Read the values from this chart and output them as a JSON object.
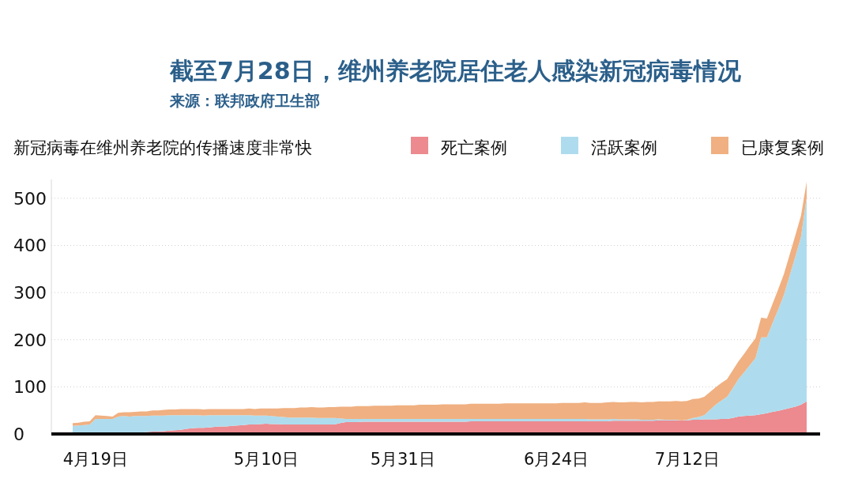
{
  "chart_data": {
    "type": "area",
    "stacked": true,
    "title": "截至7月28日，维州养老院居住老人感染新冠病毒情况",
    "subtitle": "新冠病毒在维州养老院的传播速度非常快",
    "annotations": [
      "来源：联邦政府卫生部"
    ],
    "categories": [
      null,
      null,
      null,
      null,
      "4月19日",
      null,
      null,
      null,
      null,
      null,
      null,
      null,
      null,
      null,
      null,
      null,
      null,
      null,
      null,
      null,
      null,
      null,
      null,
      null,
      null,
      null,
      null,
      null,
      null,
      null,
      null,
      null,
      null,
      null,
      "5月10日",
      null,
      null,
      null,
      null,
      null,
      null,
      null,
      null,
      null,
      null,
      null,
      null,
      null,
      null,
      null,
      null,
      null,
      null,
      null,
      null,
      null,
      null,
      null,
      "5月31日",
      null,
      null,
      null,
      null,
      null,
      null,
      null,
      null,
      null,
      null,
      null,
      null,
      null,
      null,
      null,
      null,
      null,
      null,
      null,
      null,
      null,
      null,
      null,
      null,
      null,
      null,
      "6月24日",
      null,
      null,
      null,
      null,
      null,
      null,
      null,
      null,
      null,
      null,
      null,
      null,
      null,
      null,
      null,
      null,
      null,
      null,
      null,
      null,
      null,
      null,
      "7月12日",
      null,
      null,
      null,
      null,
      null,
      null,
      null,
      null,
      null,
      null,
      null,
      null,
      null,
      null,
      null,
      null,
      null,
      null,
      null,
      null,
      null
    ],
    "series": [
      {
        "name": "死亡案例",
        "color": "#ec8a8f",
        "values": [
          1,
          1,
          1,
          1,
          1,
          1,
          1,
          1,
          1,
          2,
          2,
          3,
          3,
          4,
          5,
          5,
          6,
          7,
          8,
          9,
          11,
          12,
          13,
          13,
          14,
          15,
          16,
          16,
          17,
          18,
          19,
          20,
          20,
          21,
          22,
          21,
          21,
          20,
          20,
          20,
          20,
          20,
          20,
          20,
          20,
          20,
          20,
          23,
          25,
          25,
          25,
          26,
          26,
          26,
          26,
          26,
          26,
          26,
          26,
          26,
          26,
          26,
          26,
          26,
          26,
          26,
          26,
          26,
          26,
          26,
          27,
          27,
          27,
          27,
          27,
          27,
          27,
          27,
          27,
          27,
          27,
          27,
          27,
          27,
          27,
          27,
          27,
          27,
          27,
          27,
          27,
          27,
          27,
          27,
          27,
          28,
          28,
          28,
          28,
          28,
          28,
          28,
          28,
          29,
          29,
          29,
          29,
          29,
          29,
          30,
          30,
          31,
          31,
          31,
          32,
          32,
          34,
          37,
          38,
          39,
          40,
          42,
          44,
          47,
          49,
          52,
          55,
          58,
          62,
          69
        ]
      },
      {
        "name": "活跃案例",
        "color": "#aedcee",
        "values": [
          16,
          17,
          18,
          19,
          31,
          31,
          31,
          31,
          36,
          36,
          35,
          35,
          35,
          34,
          34,
          34,
          33,
          33,
          32,
          31,
          29,
          28,
          27,
          26,
          26,
          25,
          24,
          24,
          23,
          22,
          21,
          20,
          19,
          18,
          17,
          17,
          16,
          16,
          15,
          15,
          15,
          15,
          15,
          14,
          14,
          14,
          14,
          10,
          7,
          7,
          7,
          6,
          6,
          6,
          6,
          6,
          6,
          6,
          6,
          6,
          6,
          6,
          6,
          6,
          6,
          6,
          6,
          6,
          6,
          6,
          5,
          5,
          5,
          5,
          5,
          5,
          5,
          5,
          5,
          5,
          5,
          5,
          5,
          5,
          5,
          5,
          5,
          5,
          5,
          5,
          5,
          4,
          4,
          4,
          4,
          4,
          3,
          3,
          3,
          3,
          2,
          2,
          2,
          2,
          1,
          1,
          1,
          0,
          1,
          4,
          6,
          9,
          20,
          31,
          39,
          47,
          63,
          79,
          93,
          107,
          121,
          163,
          161,
          188,
          215,
          243,
          281,
          318,
          356,
          433
        ]
      },
      {
        "name": "已康复案例",
        "color": "#f0b081",
        "values": [
          6,
          6,
          7,
          7,
          8,
          7,
          6,
          5,
          8,
          8,
          9,
          9,
          10,
          10,
          11,
          11,
          12,
          12,
          12,
          13,
          13,
          13,
          13,
          13,
          13,
          13,
          13,
          13,
          13,
          13,
          13,
          14,
          14,
          15,
          15,
          16,
          17,
          19,
          20,
          20,
          21,
          21,
          22,
          22,
          22,
          23,
          23,
          25,
          26,
          26,
          27,
          27,
          27,
          28,
          28,
          28,
          28,
          29,
          29,
          29,
          29,
          30,
          30,
          30,
          30,
          31,
          31,
          31,
          31,
          31,
          32,
          32,
          32,
          32,
          32,
          32,
          33,
          33,
          33,
          33,
          33,
          33,
          33,
          33,
          33,
          33,
          34,
          34,
          34,
          34,
          35,
          35,
          35,
          35,
          36,
          36,
          36,
          36,
          37,
          37,
          37,
          38,
          38,
          38,
          39,
          39,
          40,
          40,
          40,
          40,
          39,
          39,
          38,
          37,
          37,
          37,
          38,
          38,
          39,
          41,
          42,
          42,
          40,
          41,
          43,
          44,
          44,
          45,
          45,
          33
        ]
      }
    ],
    "ylim": [
      0,
      540
    ],
    "yticks": [
      0,
      100,
      200,
      300,
      400,
      500
    ],
    "grid": "y",
    "legend": "top right"
  }
}
